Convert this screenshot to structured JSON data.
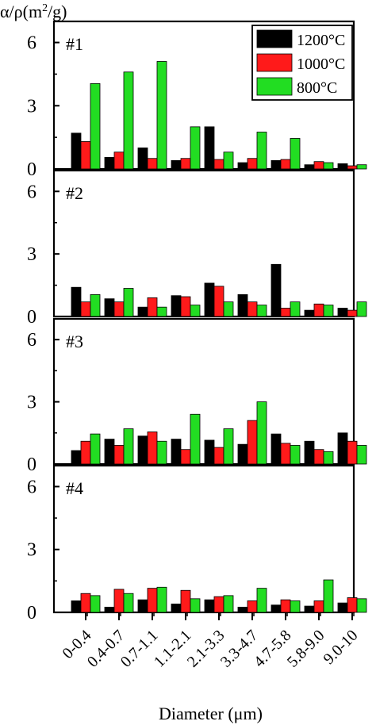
{
  "chart_data": {
    "type": "bar",
    "ylabel": "α/ρ(m²/g)",
    "ylabel_main": "α/ρ(m",
    "ylabel_sup": "2",
    "ylabel_end": "/g)",
    "xlabel": "Diameter (μm)",
    "categories": [
      "0-0.4",
      "0.4-0.7",
      "0.7-1.1",
      "1.1-2.1",
      "2.1-3.3",
      "3.3-4.7",
      "4.7-5.8",
      "5.8-9.0",
      "9.0-10"
    ],
    "ylim": [
      0,
      7
    ],
    "yticks": [
      "0",
      "3",
      "6"
    ],
    "grid": false,
    "legend_position": "top-right",
    "colors": {
      "1200°C": "#000000",
      "1000°C": "#ff1a1a",
      "800°C": "#22dd22"
    },
    "series_names": [
      "1200°C",
      "1000°C",
      "800°C"
    ],
    "panels": [
      {
        "label": "#1",
        "series": [
          {
            "name": "1200°C",
            "values": [
              1.7,
              0.55,
              1.0,
              0.4,
              2.0,
              0.3,
              0.4,
              0.2,
              0.25
            ]
          },
          {
            "name": "1000°C",
            "values": [
              1.3,
              0.8,
              0.5,
              0.5,
              0.45,
              0.5,
              0.45,
              0.35,
              0.15
            ]
          },
          {
            "name": "800°C",
            "values": [
              4.05,
              4.6,
              5.1,
              2.0,
              0.8,
              1.75,
              1.45,
              0.3,
              0.2
            ]
          }
        ]
      },
      {
        "label": "#2",
        "series": [
          {
            "name": "1200°C",
            "values": [
              1.4,
              0.85,
              0.45,
              1.0,
              1.6,
              1.05,
              2.5,
              0.3,
              0.4
            ]
          },
          {
            "name": "1000°C",
            "values": [
              0.7,
              0.7,
              0.9,
              0.95,
              1.45,
              0.7,
              0.4,
              0.6,
              0.3
            ]
          },
          {
            "name": "800°C",
            "values": [
              1.05,
              1.35,
              0.45,
              0.55,
              0.7,
              0.55,
              0.7,
              0.55,
              0.7
            ]
          }
        ]
      },
      {
        "label": "#3",
        "series": [
          {
            "name": "1200°C",
            "values": [
              0.65,
              1.2,
              1.35,
              1.2,
              1.15,
              0.95,
              1.45,
              1.1,
              1.5
            ]
          },
          {
            "name": "1000°C",
            "values": [
              1.1,
              0.9,
              1.55,
              0.7,
              0.8,
              2.1,
              1.0,
              0.7,
              1.1
            ]
          },
          {
            "name": "800°C",
            "values": [
              1.45,
              1.7,
              1.1,
              2.4,
              1.7,
              3.0,
              0.9,
              0.6,
              0.9
            ]
          }
        ]
      },
      {
        "label": "#4",
        "series": [
          {
            "name": "1200°C",
            "values": [
              0.55,
              0.25,
              0.6,
              0.4,
              0.6,
              0.25,
              0.35,
              0.3,
              0.45
            ]
          },
          {
            "name": "1000°C",
            "values": [
              0.9,
              1.1,
              1.15,
              1.05,
              0.75,
              0.55,
              0.6,
              0.55,
              0.7
            ]
          },
          {
            "name": "800°C",
            "values": [
              0.8,
              0.9,
              1.2,
              0.65,
              0.8,
              1.15,
              0.55,
              1.55,
              0.65
            ]
          }
        ]
      }
    ]
  }
}
